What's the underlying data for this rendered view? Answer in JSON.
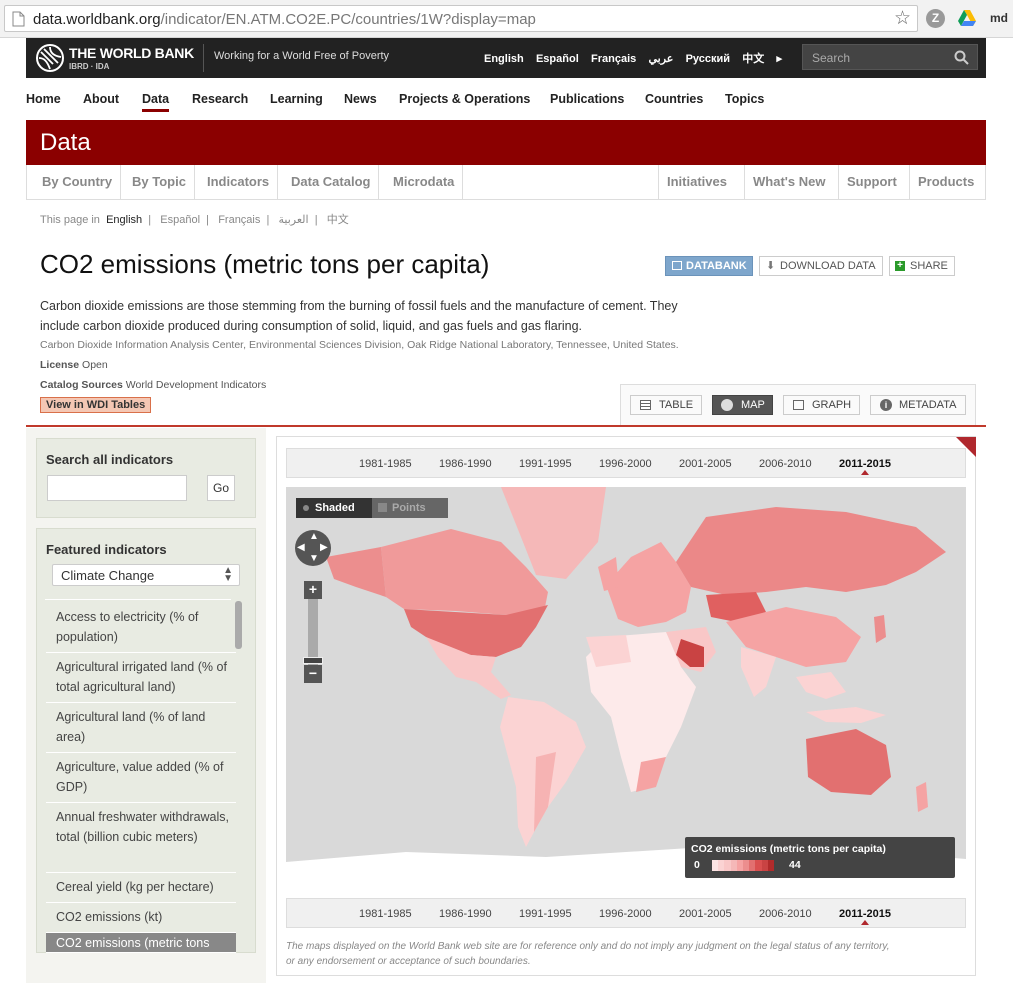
{
  "browser": {
    "url_host": "data.worldbank.org",
    "url_path": "/indicator/EN.ATM.CO2E.PC/countries/1W?display=map",
    "user": "md"
  },
  "header": {
    "logo_title": "THE WORLD BANK",
    "logo_sub": "IBRD · IDA",
    "tagline": "Working for a World Free of Poverty",
    "languages": [
      "English",
      "Español",
      "Français",
      "عربي",
      "Русский",
      "中文"
    ],
    "search_placeholder": "Search"
  },
  "nav": [
    "Home",
    "About",
    "Data",
    "Research",
    "Learning",
    "News",
    "Projects & Operations",
    "Publications",
    "Countries",
    "Topics"
  ],
  "section_title": "Data",
  "subnav_left": [
    "By Country",
    "By Topic",
    "Indicators",
    "Data Catalog",
    "Microdata"
  ],
  "subnav_right": [
    "Initiatives",
    "What's New",
    "Support",
    "Products"
  ],
  "page_lang": {
    "label": "This page in",
    "items": [
      "English",
      "Español",
      "Français",
      "العربية",
      "中文"
    ]
  },
  "indicator": {
    "title": "CO2 emissions (metric tons per capita)",
    "desc1": "Carbon dioxide emissions are those stemming from the burning of fossil fuels and the manufacture of cement. They",
    "desc2": "include carbon dioxide produced during consumption of solid, liquid, and gas fuels and gas flaring.",
    "source": "Carbon Dioxide Information Analysis Center, Environmental Sciences Division, Oak Ridge National Laboratory, Tennessee, United States.",
    "license_label": "License",
    "license_value": "Open",
    "catalog_label": "Catalog Sources",
    "catalog_value": "World Development Indicators",
    "wdi_link": "View in WDI Tables"
  },
  "actions": {
    "databank": "DATABANK",
    "download": "DOWNLOAD DATA",
    "share": "SHARE"
  },
  "view_tabs": [
    "TABLE",
    "MAP",
    "GRAPH",
    "METADATA"
  ],
  "left": {
    "search_title": "Search all indicators",
    "go": "Go",
    "featured_title": "Featured indicators",
    "select_value": "Climate Change",
    "indicators": [
      "Access to electricity (% of population)",
      "Agricultural irrigated land (% of total agricultural land)",
      "Agricultural land (% of land area)",
      "Agriculture, value added (% of GDP)",
      "Annual freshwater withdrawals, total (billion cubic meters)",
      "Cereal yield (kg per hectare)",
      "CO2 emissions (kt)",
      "CO2 emissions (metric tons"
    ]
  },
  "map": {
    "periods": [
      "1981-1985",
      "1986-1990",
      "1991-1995",
      "1996-2000",
      "2001-2005",
      "2006-2010",
      "2011-2015"
    ],
    "selected_period": "2011-2015",
    "mode_shaded": "Shaded",
    "mode_points": "Points",
    "legend_title": "CO2 emissions (metric tons per capita)",
    "legend_min": "0",
    "legend_max": "44",
    "disclaimer1": "The maps displayed on the World Bank web site are for reference only and do not imply any judgment on the legal status of any territory,",
    "disclaimer2": "or any endorsement or acceptance of such boundaries.",
    "colors": {
      "ocean": "#d9d9d9",
      "land_none": "#ffffff",
      "low": "#fbd3d3",
      "mid": "#f5a3a3",
      "high": "#ea8080",
      "top": "#d94f4f"
    }
  }
}
